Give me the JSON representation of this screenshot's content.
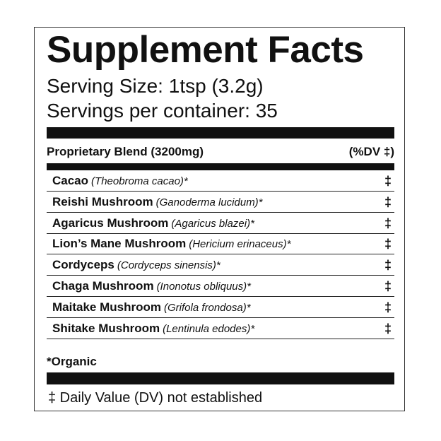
{
  "title": "Supplement Facts",
  "serving_size": "Serving Size: 1tsp (3.2g)",
  "servings_per_container": "Servings per container: 35",
  "blend_label": "Proprietary Blend (3200mg)",
  "dv_header": "(%DV ‡)",
  "ingredients": [
    {
      "name": "Cacao",
      "latin": "(Theobroma cacao)*",
      "dv": "‡"
    },
    {
      "name": "Reishi Mushroom",
      "latin": "(Ganoderma lucidum)*",
      "dv": "‡"
    },
    {
      "name": "Agaricus Mushroom",
      "latin": "(Agaricus blazei)*",
      "dv": "‡"
    },
    {
      "name": "Lion’s Mane Mushroom",
      "latin": "(Hericium erinaceus)*",
      "dv": "‡"
    },
    {
      "name": "Cordyceps",
      "latin": "(Cordyceps sinensis)*",
      "dv": "‡"
    },
    {
      "name": "Chaga Mushroom",
      "latin": "(Inonotus obliquus)*",
      "dv": "‡"
    },
    {
      "name": "Maitake Mushroom",
      "latin": "(Grifola frondosa)*",
      "dv": "‡"
    },
    {
      "name": "Shitake Mushroom",
      "latin": "(Lentinula edodes)*",
      "dv": "‡"
    }
  ],
  "organic_note": "*Organic",
  "footnote": "‡ Daily Value (DV) not established"
}
